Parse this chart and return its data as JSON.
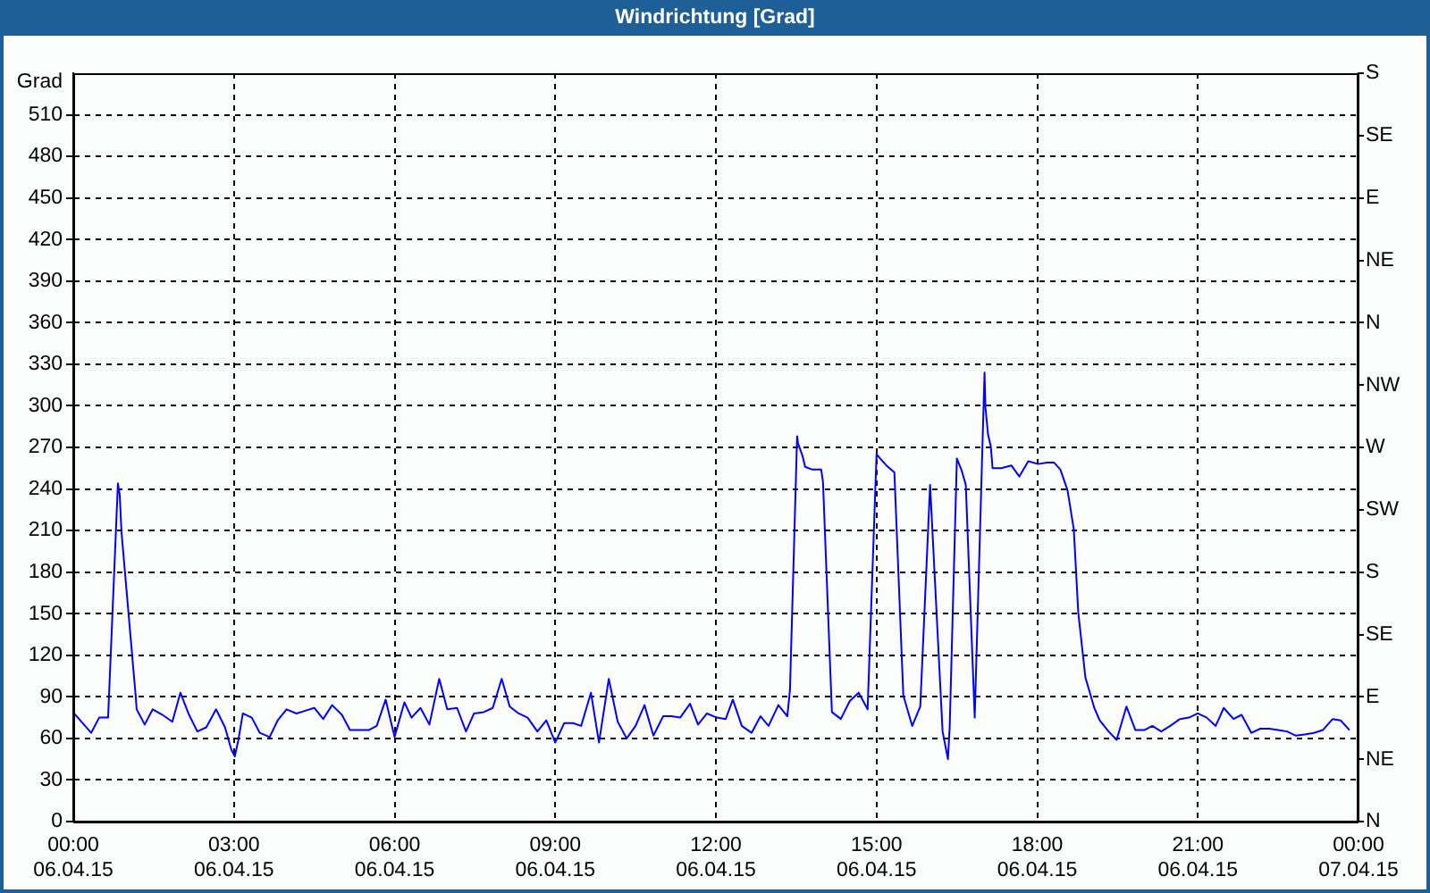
{
  "chart_data": {
    "type": "line",
    "title": "Windrichtung [Grad]",
    "ylabel": "Grad",
    "color": "#0000ff",
    "x": [
      "--04-06T00:01",
      "--04-06T00:20",
      "--04-06T00:29",
      "--04-06T00:39",
      "--04-06T00:50",
      "--04-06T00:52",
      "--04-06T00:54",
      "--04-06T01:10",
      "--04-06T01:11",
      "--04-06T01:20",
      "--04-06T01:29",
      "--04-06T01:40",
      "--04-06T01:51",
      "--04-06T02:00",
      "--04-06T02:09",
      "--04-06T02:19",
      "--04-06T02:29",
      "--04-06T02:40",
      "--04-06T02:50",
      "--04-06T02:57",
      "--04-06T03:01",
      "--04-06T03:05",
      "--04-06T03:10",
      "--04-06T03:20",
      "--04-06T03:29",
      "--04-06T03:40",
      "--04-06T03:49",
      "--04-06T03:59",
      "--04-06T04:10",
      "--04-06T04:20",
      "--04-06T04:30",
      "--04-06T04:40",
      "--04-06T04:50",
      "--04-06T05:01",
      "--04-06T05:10",
      "--04-06T05:31",
      "--04-06T05:40",
      "--04-06T05:50",
      "--04-06T06:00",
      "--04-06T06:11",
      "--04-06T06:19",
      "--04-06T06:29",
      "--04-06T06:39",
      "--04-06T06:50",
      "--04-06T06:59",
      "--04-06T07:10",
      "--04-06T07:20",
      "--04-06T07:29",
      "--04-06T07:40",
      "--04-06T07:50",
      "--04-06T08:00",
      "--04-06T08:09",
      "--04-06T08:19",
      "--04-06T08:29",
      "--04-06T08:40",
      "--04-06T08:50",
      "--04-06T09:00",
      "--04-06T09:10",
      "--04-06T09:20",
      "--04-06T09:29",
      "--04-06T09:40",
      "--04-06T09:49",
      "--04-06T10:00",
      "--04-06T10:10",
      "--04-06T10:20",
      "--04-06T10:30",
      "--04-06T10:40",
      "--04-06T10:50",
      "--04-06T11:01",
      "--04-06T11:10",
      "--04-06T11:20",
      "--04-06T11:31",
      "--04-06T11:40",
      "--04-06T11:50",
      "--04-06T12:01",
      "--04-06T12:11",
      "--04-06T12:19",
      "--04-06T12:29",
      "--04-06T12:40",
      "--04-06T12:50",
      "--04-06T12:59",
      "--04-06T13:10",
      "--04-06T13:20",
      "--04-06T13:23",
      "--04-06T13:31",
      "--04-06T13:32",
      "--04-06T13:37",
      "--04-06T13:40",
      "--04-06T13:48",
      "--04-06T13:58",
      "--04-06T14:00",
      "--04-06T14:10",
      "--04-06T14:20",
      "--04-06T14:30",
      "--04-06T14:40",
      "--04-06T14:50",
      "--04-06T15:00",
      "--04-06T15:04",
      "--04-06T15:11",
      "--04-06T15:20",
      "--04-06T15:30",
      "--04-06T15:40",
      "--04-06T15:49",
      "--04-06T16:00",
      "--04-06T16:14",
      "--04-06T16:20",
      "--04-06T16:22",
      "--04-06T16:30",
      "--04-06T16:35",
      "--04-06T16:40",
      "--04-06T16:50",
      "--04-06T17:01",
      "--04-06T17:02",
      "--04-06T17:05",
      "--04-06T17:08",
      "--04-06T17:10",
      "--04-06T17:20",
      "--04-06T17:31",
      "--04-06T17:40",
      "--04-06T17:50",
      "--04-06T18:01",
      "--04-06T18:11",
      "--04-06T18:19",
      "--04-06T18:26",
      "--04-06T18:34",
      "--04-06T18:41",
      "--04-06T18:46",
      "--04-06T18:54",
      "--04-06T19:04",
      "--04-06T19:10",
      "--04-06T19:20",
      "--04-06T19:29",
      "--04-06T19:40",
      "--04-06T19:50",
      "--04-06T20:00",
      "--04-06T20:09",
      "--04-06T20:19",
      "--04-06T20:29",
      "--04-06T20:40",
      "--04-06T20:50",
      "--04-06T21:00",
      "--04-06T21:10",
      "--04-06T21:20",
      "--04-06T21:29",
      "--04-06T21:40",
      "--04-06T21:49",
      "--04-06T22:00",
      "--04-06T22:10",
      "--04-06T22:20",
      "--04-06T22:30",
      "--04-06T22:40",
      "--04-06T22:50",
      "--04-06T23:01",
      "--04-06T23:10",
      "--04-06T23:20",
      "--04-06T23:31",
      "--04-06T23:40",
      "--04-06T23:50"
    ],
    "values": [
      78,
      64,
      75,
      75,
      244,
      236,
      209,
      90,
      81,
      70,
      81,
      77,
      72,
      93,
      78,
      65,
      68,
      81,
      68,
      52,
      47,
      59,
      78,
      75,
      64,
      61,
      73,
      81,
      78,
      80,
      82,
      74,
      84,
      77,
      66,
      66,
      69,
      88,
      61,
      86,
      75,
      82,
      70,
      103,
      81,
      82,
      65,
      78,
      79,
      82,
      103,
      83,
      78,
      75,
      65,
      73,
      57,
      71,
      71,
      69,
      93,
      57,
      103,
      72,
      60,
      69,
      84,
      62,
      76,
      76,
      75,
      85,
      70,
      78,
      75,
      74,
      88,
      69,
      64,
      76,
      69,
      84,
      76,
      95,
      278,
      273,
      264,
      256,
      254,
      254,
      245,
      79,
      74,
      87,
      93,
      81,
      265,
      262,
      257,
      252,
      91,
      69,
      83,
      243,
      65,
      45,
      69,
      262,
      254,
      243,
      75,
      324,
      299,
      279,
      271,
      255,
      255,
      257,
      249,
      260,
      258,
      259,
      259,
      254,
      239,
      211,
      151,
      104,
      82,
      73,
      65,
      59,
      83,
      66,
      66,
      69,
      65,
      69,
      74,
      75,
      78,
      75,
      69,
      82,
      74,
      77,
      64,
      67,
      67,
      66,
      65,
      62,
      63,
      64,
      66,
      74,
      73,
      66
    ],
    "xlim": [
      "--04-06T00:00",
      "--04-07T00:00"
    ],
    "xticks": [
      {
        "value": "--04-06T00:00",
        "label": "00:00\n06.04.15"
      },
      {
        "value": "--04-06T03:00",
        "label": "03:00\n06.04.15"
      },
      {
        "value": "--04-06T06:00",
        "label": "06:00\n06.04.15"
      },
      {
        "value": "--04-06T09:00",
        "label": "09:00\n06.04.15"
      },
      {
        "value": "--04-06T12:00",
        "label": "12:00\n06.04.15"
      },
      {
        "value": "--04-06T15:00",
        "label": "15:00\n06.04.15"
      },
      {
        "value": "--04-06T18:00",
        "label": "18:00\n06.04.15"
      },
      {
        "value": "--04-06T21:00",
        "label": "21:00\n06.04.15"
      },
      {
        "value": "--04-07T00:00",
        "label": "00:00\n07.04.15"
      }
    ],
    "ylim": [
      0,
      540
    ],
    "yticks": [
      0,
      30,
      60,
      90,
      120,
      150,
      180,
      210,
      240,
      270,
      300,
      330,
      360,
      390,
      420,
      450,
      480,
      510
    ],
    "y2_categories": [
      "S",
      "SE",
      "E",
      "NE",
      "N",
      "NW",
      "W",
      "SW",
      "S",
      "SE",
      "E",
      "NE",
      "N"
    ],
    "grid": true
  }
}
